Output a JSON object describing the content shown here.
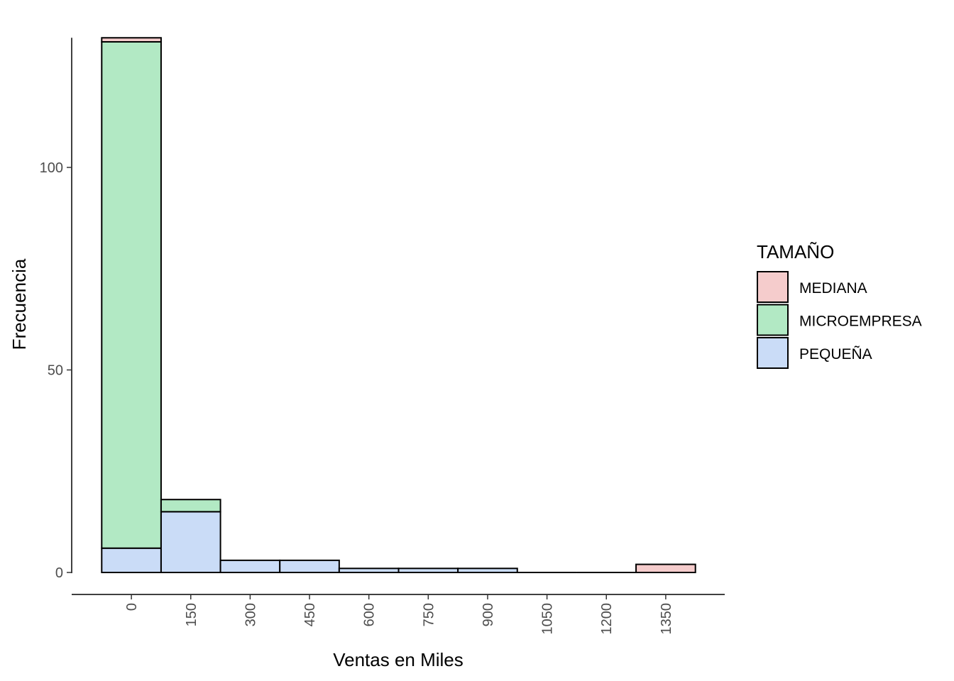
{
  "chart_data": {
    "type": "bar",
    "stacked": true,
    "histogram": true,
    "bins": [
      {
        "center": 0,
        "width": 150
      },
      {
        "center": 150,
        "width": 150
      },
      {
        "center": 300,
        "width": 150
      },
      {
        "center": 450,
        "width": 150
      },
      {
        "center": 600,
        "width": 150
      },
      {
        "center": 750,
        "width": 150
      },
      {
        "center": 900,
        "width": 150
      },
      {
        "center": 1050,
        "width": 150
      },
      {
        "center": 1200,
        "width": 150
      },
      {
        "center": 1350,
        "width": 150
      }
    ],
    "series": [
      {
        "name": "PEQUEÑA",
        "color": "#cadcf7",
        "values": [
          6,
          15,
          3,
          3,
          1,
          1,
          1,
          0,
          0,
          0
        ]
      },
      {
        "name": "MICROEMPRESA",
        "color": "#b2e9c4",
        "values": [
          125,
          3,
          0,
          0,
          0,
          0,
          0,
          0,
          0,
          0
        ]
      },
      {
        "name": "MEDIANA",
        "color": "#f5cccc",
        "values": [
          1,
          0,
          0,
          0,
          0,
          0,
          0,
          0,
          0,
          2
        ]
      }
    ],
    "x_ticks": [
      "0",
      "150",
      "300",
      "450",
      "600",
      "750",
      "900",
      "1050",
      "1200",
      "1350"
    ],
    "y_ticks": [
      0,
      50,
      100
    ],
    "xlim": [
      -75,
      1425
    ],
    "ylim": [
      0,
      132
    ],
    "xlabel": "Ventas en Miles",
    "ylabel": "Frecuencia",
    "grid": false,
    "legend": {
      "title": "TAMAÑO",
      "position": "right",
      "items": [
        {
          "label": "MEDIANA",
          "color": "#f5cccc"
        },
        {
          "label": "MICROEMPRESA",
          "color": "#b2e9c4"
        },
        {
          "label": "PEQUEÑA",
          "color": "#cadcf7"
        }
      ]
    }
  }
}
